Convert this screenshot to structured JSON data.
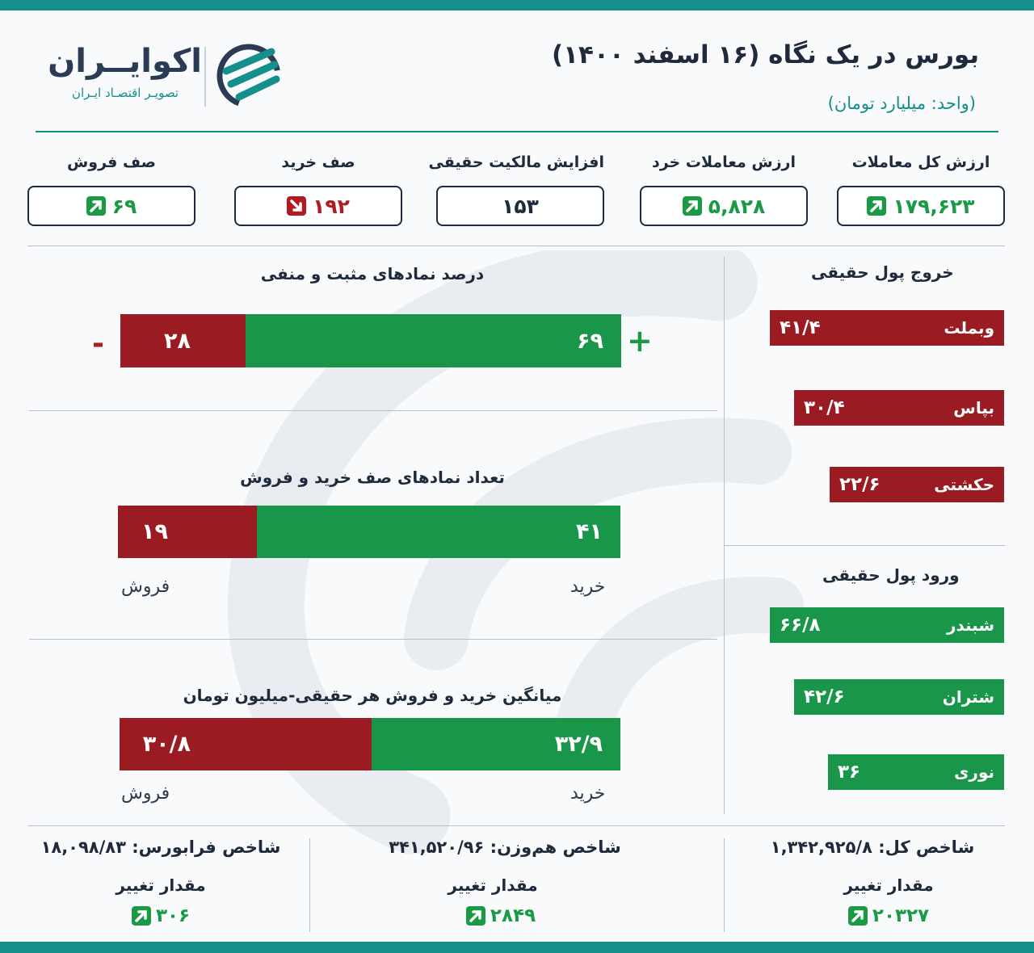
{
  "header": {
    "title": "بورس در یک نگاه (۱۶ اسفند ۱۴۰۰)",
    "unit": "(واحد: میلیارد تومان)",
    "logo_name": "اکوایــران",
    "logo_tagline": "تصویـر اقتصـاد ایـران",
    "accent_color": "#148f8c"
  },
  "stats": [
    {
      "label": "ارزش کل معاملات",
      "value": "۱۷۹,۶۲۳",
      "trend": "up",
      "icon": "arrow-up-icon"
    },
    {
      "label": "ارزش معاملات خرد",
      "value": "۵,۸۲۸",
      "trend": "up",
      "icon": "arrow-up-icon"
    },
    {
      "label": "افزایش مالکیت حقیقی",
      "value": "۱۵۳",
      "trend": "none",
      "icon": ""
    },
    {
      "label": "صف خرید",
      "value": "۱۹۲",
      "trend": "down",
      "icon": "arrow-down-icon"
    },
    {
      "label": "صف فروش",
      "value": "۶۹",
      "trend": "up",
      "icon": "arrow-up-icon"
    }
  ],
  "positive_negative": {
    "title": "درصد نمادهای مثبت و منفی",
    "positive": "۶۹",
    "negative": "۲۸",
    "plus_sign": "+",
    "minus_sign": "-"
  },
  "queues": {
    "title": "تعداد نمادهای صف خرید و فروش",
    "buy": "۴۱",
    "sell": "۱۹",
    "buy_label": "خرید",
    "sell_label": "فروش"
  },
  "average_trade": {
    "title": "میانگین خرید و فروش هر حقیقی-میلیون تومان",
    "buy": "۳۲/۹",
    "sell": "۳۰/۸",
    "buy_label": "خرید",
    "sell_label": "فروش"
  },
  "money_out": {
    "title": "خروج پول حقیقی",
    "items": [
      {
        "name": "وبملت",
        "value": "۴۱/۴"
      },
      {
        "name": "بپاس",
        "value": "۳۰/۴"
      },
      {
        "name": "حکشتی",
        "value": "۲۲/۶"
      }
    ]
  },
  "money_in": {
    "title": "ورود پول حقیقی",
    "items": [
      {
        "name": "شبندر",
        "value": "۶۶/۸"
      },
      {
        "name": "شتران",
        "value": "۴۲/۶"
      },
      {
        "name": "نوری",
        "value": "۳۶"
      }
    ]
  },
  "indices": [
    {
      "title": "شاخص کل: ۱,۳۴۲,۹۲۵/۸",
      "change_label": "مقدار تغییر",
      "change": "۲۰۳۲۷"
    },
    {
      "title": "شاخص هم‌وزن: ۳۴۱,۵۲۰/۹۶",
      "change_label": "مقدار تغییر",
      "change": "۲۸۴۹"
    },
    {
      "title": "شاخص فرابورس: ۱۸,۰۹۸/۸۳",
      "change_label": "مقدار تغییر",
      "change": "۳۰۶"
    }
  ]
}
